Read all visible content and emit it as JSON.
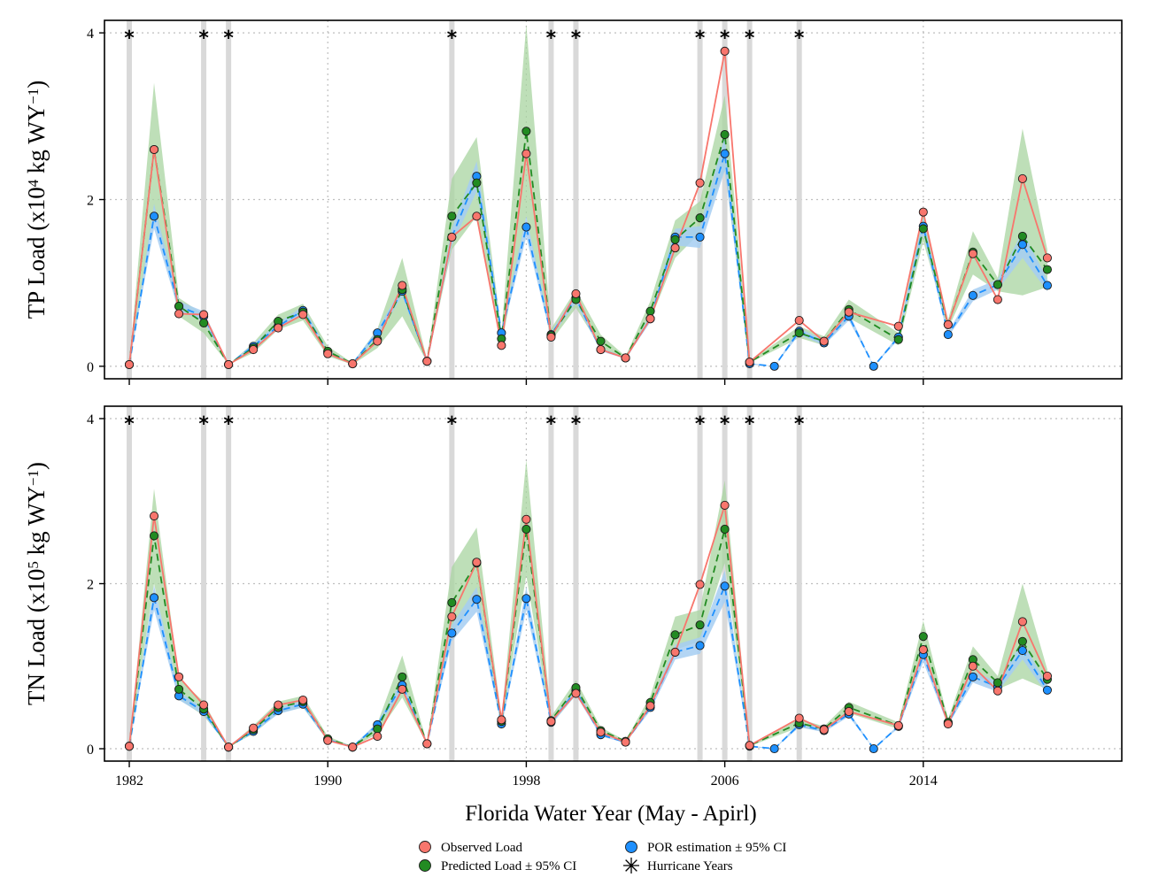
{
  "chart_data": {
    "type": "line",
    "xlabel": "Florida Water Year (May - Apirl)",
    "x_ticks": [
      1982,
      1990,
      1998,
      2006,
      2014
    ],
    "xlim": [
      1981,
      2022
    ],
    "hurricane_years": [
      1982,
      1985,
      1986,
      1995,
      1999,
      2000,
      2005,
      2006,
      2007,
      2009
    ],
    "hurricane_marker": "*",
    "colors": {
      "observed": "#F8766D",
      "predicted": "#228B22",
      "predicted_ci": "#A8D4A0",
      "por": "#1E90FF",
      "por_ci": "#A6CEF2",
      "hurricane_band": "#D9D9D9",
      "grid": "#BEBEBE"
    },
    "legend": {
      "position": "bottom",
      "items": [
        {
          "key": "observed",
          "label": "Observed Load",
          "marker": "circle"
        },
        {
          "key": "predicted",
          "label": "Predicted Load ± 95% CI",
          "marker": "circle"
        },
        {
          "key": "por",
          "label": "POR estimation ± 95% CI",
          "marker": "circle"
        },
        {
          "key": "hurricane",
          "label": "Hurricane Years",
          "marker": "asterisk"
        }
      ]
    },
    "panels": [
      {
        "id": "tp",
        "ylabel_main": "TP Load (x10",
        "ylabel_exp": "4",
        "ylabel_tail": " kg WY",
        "ylabel_exp2": "−1",
        "ylabel_close": ")",
        "ylim": [
          -0.15,
          4.15
        ],
        "y_ticks": [
          0,
          2,
          4
        ],
        "grid": true,
        "series": [
          {
            "name": "Observed Load",
            "key": "observed",
            "x": [
              1982,
              1983,
              1984,
              1985,
              1986,
              1987,
              1988,
              1989,
              1990,
              1991,
              1992,
              1993,
              1994,
              1995,
              1996,
              1997,
              1998,
              1999,
              2000,
              2001,
              2002,
              2003,
              2004,
              2005,
              2006,
              2007,
              2009,
              2010,
              2011,
              2013,
              2014,
              2015,
              2016,
              2017,
              2018,
              2019
            ],
            "y": [
              0.02,
              2.6,
              0.63,
              0.62,
              0.02,
              0.2,
              0.46,
              0.62,
              0.15,
              0.03,
              0.3,
              0.97,
              0.06,
              1.55,
              1.8,
              0.25,
              2.55,
              0.35,
              0.87,
              0.2,
              0.1,
              0.57,
              1.42,
              2.2,
              3.78,
              0.05,
              0.55,
              0.3,
              0.65,
              0.48,
              1.85,
              0.5,
              1.35,
              0.8,
              2.25,
              1.3
            ]
          },
          {
            "name": "Predicted Load ± 95% CI",
            "key": "predicted",
            "x": [
              1982,
              1983,
              1984,
              1985,
              1986,
              1987,
              1988,
              1989,
              1990,
              1991,
              1992,
              1993,
              1994,
              1995,
              1996,
              1997,
              1998,
              1999,
              2000,
              2001,
              2002,
              2003,
              2004,
              2005,
              2006,
              2007,
              2009,
              2010,
              2011,
              2013,
              2014,
              2015,
              2016,
              2017,
              2018,
              2019
            ],
            "y": [
              0.02,
              2.6,
              0.72,
              0.52,
              0.02,
              0.22,
              0.54,
              0.65,
              0.18,
              0.03,
              0.32,
              0.92,
              0.06,
              1.8,
              2.2,
              0.33,
              2.82,
              0.37,
              0.8,
              0.3,
              0.1,
              0.66,
              1.52,
              1.78,
              2.78,
              0.05,
              0.4,
              0.3,
              0.68,
              0.32,
              1.65,
              0.5,
              1.37,
              0.98,
              1.56,
              1.16
            ],
            "ci_low": [
              0.02,
              1.9,
              0.6,
              0.4,
              0.02,
              0.16,
              0.44,
              0.55,
              0.12,
              0.02,
              0.22,
              0.6,
              0.05,
              1.4,
              1.8,
              0.25,
              1.8,
              0.3,
              0.7,
              0.22,
              0.08,
              0.55,
              1.3,
              1.6,
              2.35,
              0.04,
              0.34,
              0.25,
              0.58,
              0.25,
              1.5,
              0.45,
              1.1,
              0.9,
              0.85,
              0.95
            ],
            "ci_high": [
              0.02,
              3.4,
              0.82,
              0.62,
              0.02,
              0.28,
              0.62,
              0.75,
              0.24,
              0.04,
              0.45,
              1.3,
              0.08,
              2.25,
              2.75,
              0.42,
              4.1,
              0.45,
              0.92,
              0.38,
              0.12,
              0.78,
              1.75,
              1.98,
              3.25,
              0.06,
              0.48,
              0.36,
              0.8,
              0.4,
              1.85,
              0.56,
              1.62,
              1.06,
              2.85,
              1.4
            ]
          },
          {
            "name": "POR estimation ± 95% CI",
            "key": "por",
            "x": [
              1982,
              1983,
              1984,
              1985,
              1986,
              1987,
              1988,
              1989,
              1990,
              1991,
              1992,
              1993,
              1994,
              1995,
              1996,
              1997,
              1998,
              1999,
              2000,
              2001,
              2002,
              2003,
              2004,
              2005,
              2006,
              2007,
              2008,
              2009,
              2010,
              2011,
              2012,
              2013,
              2014,
              2015,
              2016,
              2017,
              2018,
              2019
            ],
            "y": [
              0.02,
              1.8,
              0.72,
              0.6,
              0.02,
              0.24,
              0.48,
              0.67,
              0.17,
              0.03,
              0.4,
              0.9,
              0.06,
              1.55,
              2.28,
              0.4,
              1.67,
              0.38,
              0.82,
              0.2,
              0.1,
              0.57,
              1.55,
              1.55,
              2.55,
              0.03,
              0.0,
              0.42,
              0.28,
              0.6,
              0.0,
              0.35,
              1.68,
              0.38,
              0.85,
              0.98,
              1.46,
              0.97
            ],
            "ci_low": [
              0.02,
              1.65,
              0.66,
              0.54,
              0.02,
              0.21,
              0.44,
              0.62,
              0.15,
              0.02,
              0.36,
              0.84,
              0.05,
              1.45,
              2.1,
              0.36,
              1.55,
              0.35,
              0.76,
              0.18,
              0.09,
              0.53,
              1.45,
              1.42,
              2.35,
              0.02,
              0.0,
              0.38,
              0.25,
              0.55,
              0.0,
              0.32,
              1.58,
              0.35,
              0.78,
              0.92,
              1.3,
              0.9
            ],
            "ci_high": [
              0.02,
              1.95,
              0.78,
              0.66,
              0.02,
              0.27,
              0.52,
              0.72,
              0.19,
              0.04,
              0.44,
              0.96,
              0.07,
              1.65,
              2.46,
              0.44,
              1.8,
              0.41,
              0.88,
              0.22,
              0.11,
              0.61,
              1.65,
              1.68,
              2.75,
              0.04,
              0.0,
              0.46,
              0.31,
              0.65,
              0.0,
              0.38,
              1.78,
              0.41,
              0.92,
              1.04,
              1.62,
              1.04
            ]
          }
        ]
      },
      {
        "id": "tn",
        "ylabel_main": "TN Load (x10",
        "ylabel_exp": "5",
        "ylabel_tail": " kg WY",
        "ylabel_exp2": "−1",
        "ylabel_close": ")",
        "ylim": [
          -0.15,
          4.15
        ],
        "y_ticks": [
          0,
          2,
          4
        ],
        "grid": true,
        "series": [
          {
            "name": "Observed Load",
            "key": "observed",
            "x": [
              1982,
              1983,
              1984,
              1985,
              1986,
              1987,
              1988,
              1989,
              1990,
              1991,
              1992,
              1993,
              1994,
              1995,
              1996,
              1997,
              1998,
              1999,
              2000,
              2001,
              2002,
              2003,
              2004,
              2005,
              2006,
              2007,
              2009,
              2010,
              2011,
              2013,
              2014,
              2015,
              2016,
              2017,
              2018,
              2019
            ],
            "y": [
              0.03,
              2.82,
              0.87,
              0.53,
              0.02,
              0.25,
              0.53,
              0.59,
              0.1,
              0.02,
              0.15,
              0.72,
              0.06,
              1.6,
              2.26,
              0.35,
              2.78,
              0.33,
              0.67,
              0.2,
              0.08,
              0.52,
              1.17,
              1.99,
              2.95,
              0.04,
              0.37,
              0.23,
              0.45,
              0.28,
              1.2,
              0.3,
              1.0,
              0.7,
              1.54,
              0.88
            ],
            "ci_low": [],
            "ci_high": []
          },
          {
            "name": "Predicted Load ± 95% CI",
            "key": "predicted",
            "x": [
              1982,
              1983,
              1984,
              1985,
              1986,
              1987,
              1988,
              1989,
              1990,
              1991,
              1992,
              1993,
              1994,
              1995,
              1996,
              1997,
              1998,
              1999,
              2000,
              2001,
              2002,
              2003,
              2004,
              2005,
              2006,
              2007,
              2009,
              2010,
              2011,
              2013,
              2014,
              2015,
              2016,
              2017,
              2018,
              2019
            ],
            "y": [
              0.03,
              2.58,
              0.72,
              0.48,
              0.02,
              0.23,
              0.5,
              0.57,
              0.12,
              0.02,
              0.24,
              0.87,
              0.06,
              1.77,
              2.25,
              0.33,
              2.66,
              0.34,
              0.74,
              0.22,
              0.09,
              0.56,
              1.38,
              1.5,
              2.66,
              0.04,
              0.31,
              0.24,
              0.5,
              0.28,
              1.36,
              0.32,
              1.08,
              0.8,
              1.3,
              0.84
            ],
            "ci_low": [
              0.03,
              2.0,
              0.6,
              0.4,
              0.02,
              0.18,
              0.43,
              0.5,
              0.09,
              0.02,
              0.18,
              0.62,
              0.05,
              1.4,
              1.8,
              0.28,
              2.1,
              0.29,
              0.65,
              0.18,
              0.08,
              0.48,
              1.2,
              1.3,
              2.25,
              0.03,
              0.26,
              0.21,
              0.43,
              0.24,
              1.18,
              0.28,
              0.92,
              0.72,
              0.85,
              0.72
            ],
            "ci_high": [
              0.03,
              3.15,
              0.85,
              0.57,
              0.02,
              0.28,
              0.57,
              0.64,
              0.15,
              0.03,
              0.31,
              1.13,
              0.07,
              2.2,
              2.68,
              0.38,
              3.5,
              0.39,
              0.83,
              0.26,
              0.1,
              0.64,
              1.6,
              1.68,
              3.25,
              0.05,
              0.36,
              0.27,
              0.57,
              0.32,
              1.55,
              0.36,
              1.24,
              0.88,
              2.0,
              0.96
            ]
          },
          {
            "name": "POR estimation ± 95% CI",
            "key": "por",
            "x": [
              1982,
              1983,
              1984,
              1985,
              1986,
              1987,
              1988,
              1989,
              1990,
              1991,
              1992,
              1993,
              1994,
              1995,
              1996,
              1997,
              1998,
              1999,
              2000,
              2001,
              2002,
              2003,
              2004,
              2005,
              2006,
              2007,
              2008,
              2009,
              2010,
              2011,
              2012,
              2013,
              2014,
              2015,
              2016,
              2017,
              2018,
              2019
            ],
            "y": [
              0.03,
              1.83,
              0.64,
              0.45,
              0.02,
              0.21,
              0.46,
              0.54,
              0.11,
              0.02,
              0.29,
              0.77,
              0.06,
              1.4,
              1.81,
              0.3,
              1.82,
              0.32,
              0.7,
              0.17,
              0.08,
              0.5,
              1.17,
              1.25,
              1.97,
              0.03,
              0.0,
              0.29,
              0.22,
              0.42,
              0.0,
              0.27,
              1.14,
              0.31,
              0.87,
              0.75,
              1.19,
              0.71
            ],
            "ci_low": [
              0.03,
              1.68,
              0.59,
              0.41,
              0.02,
              0.19,
              0.42,
              0.5,
              0.1,
              0.02,
              0.26,
              0.71,
              0.05,
              1.3,
              1.66,
              0.27,
              1.68,
              0.29,
              0.65,
              0.15,
              0.07,
              0.46,
              1.08,
              1.15,
              1.78,
              0.02,
              0.0,
              0.26,
              0.2,
              0.39,
              0.0,
              0.25,
              1.05,
              0.28,
              0.8,
              0.69,
              1.08,
              0.66
            ],
            "ci_high": [
              0.03,
              1.98,
              0.69,
              0.49,
              0.02,
              0.23,
              0.5,
              0.58,
              0.12,
              0.03,
              0.32,
              0.83,
              0.07,
              1.5,
              1.96,
              0.33,
              1.96,
              0.35,
              0.75,
              0.19,
              0.09,
              0.54,
              1.26,
              1.35,
              2.16,
              0.04,
              0.0,
              0.32,
              0.24,
              0.45,
              0.0,
              0.29,
              1.23,
              0.34,
              0.94,
              0.81,
              1.3,
              0.76
            ]
          }
        ]
      }
    ]
  }
}
